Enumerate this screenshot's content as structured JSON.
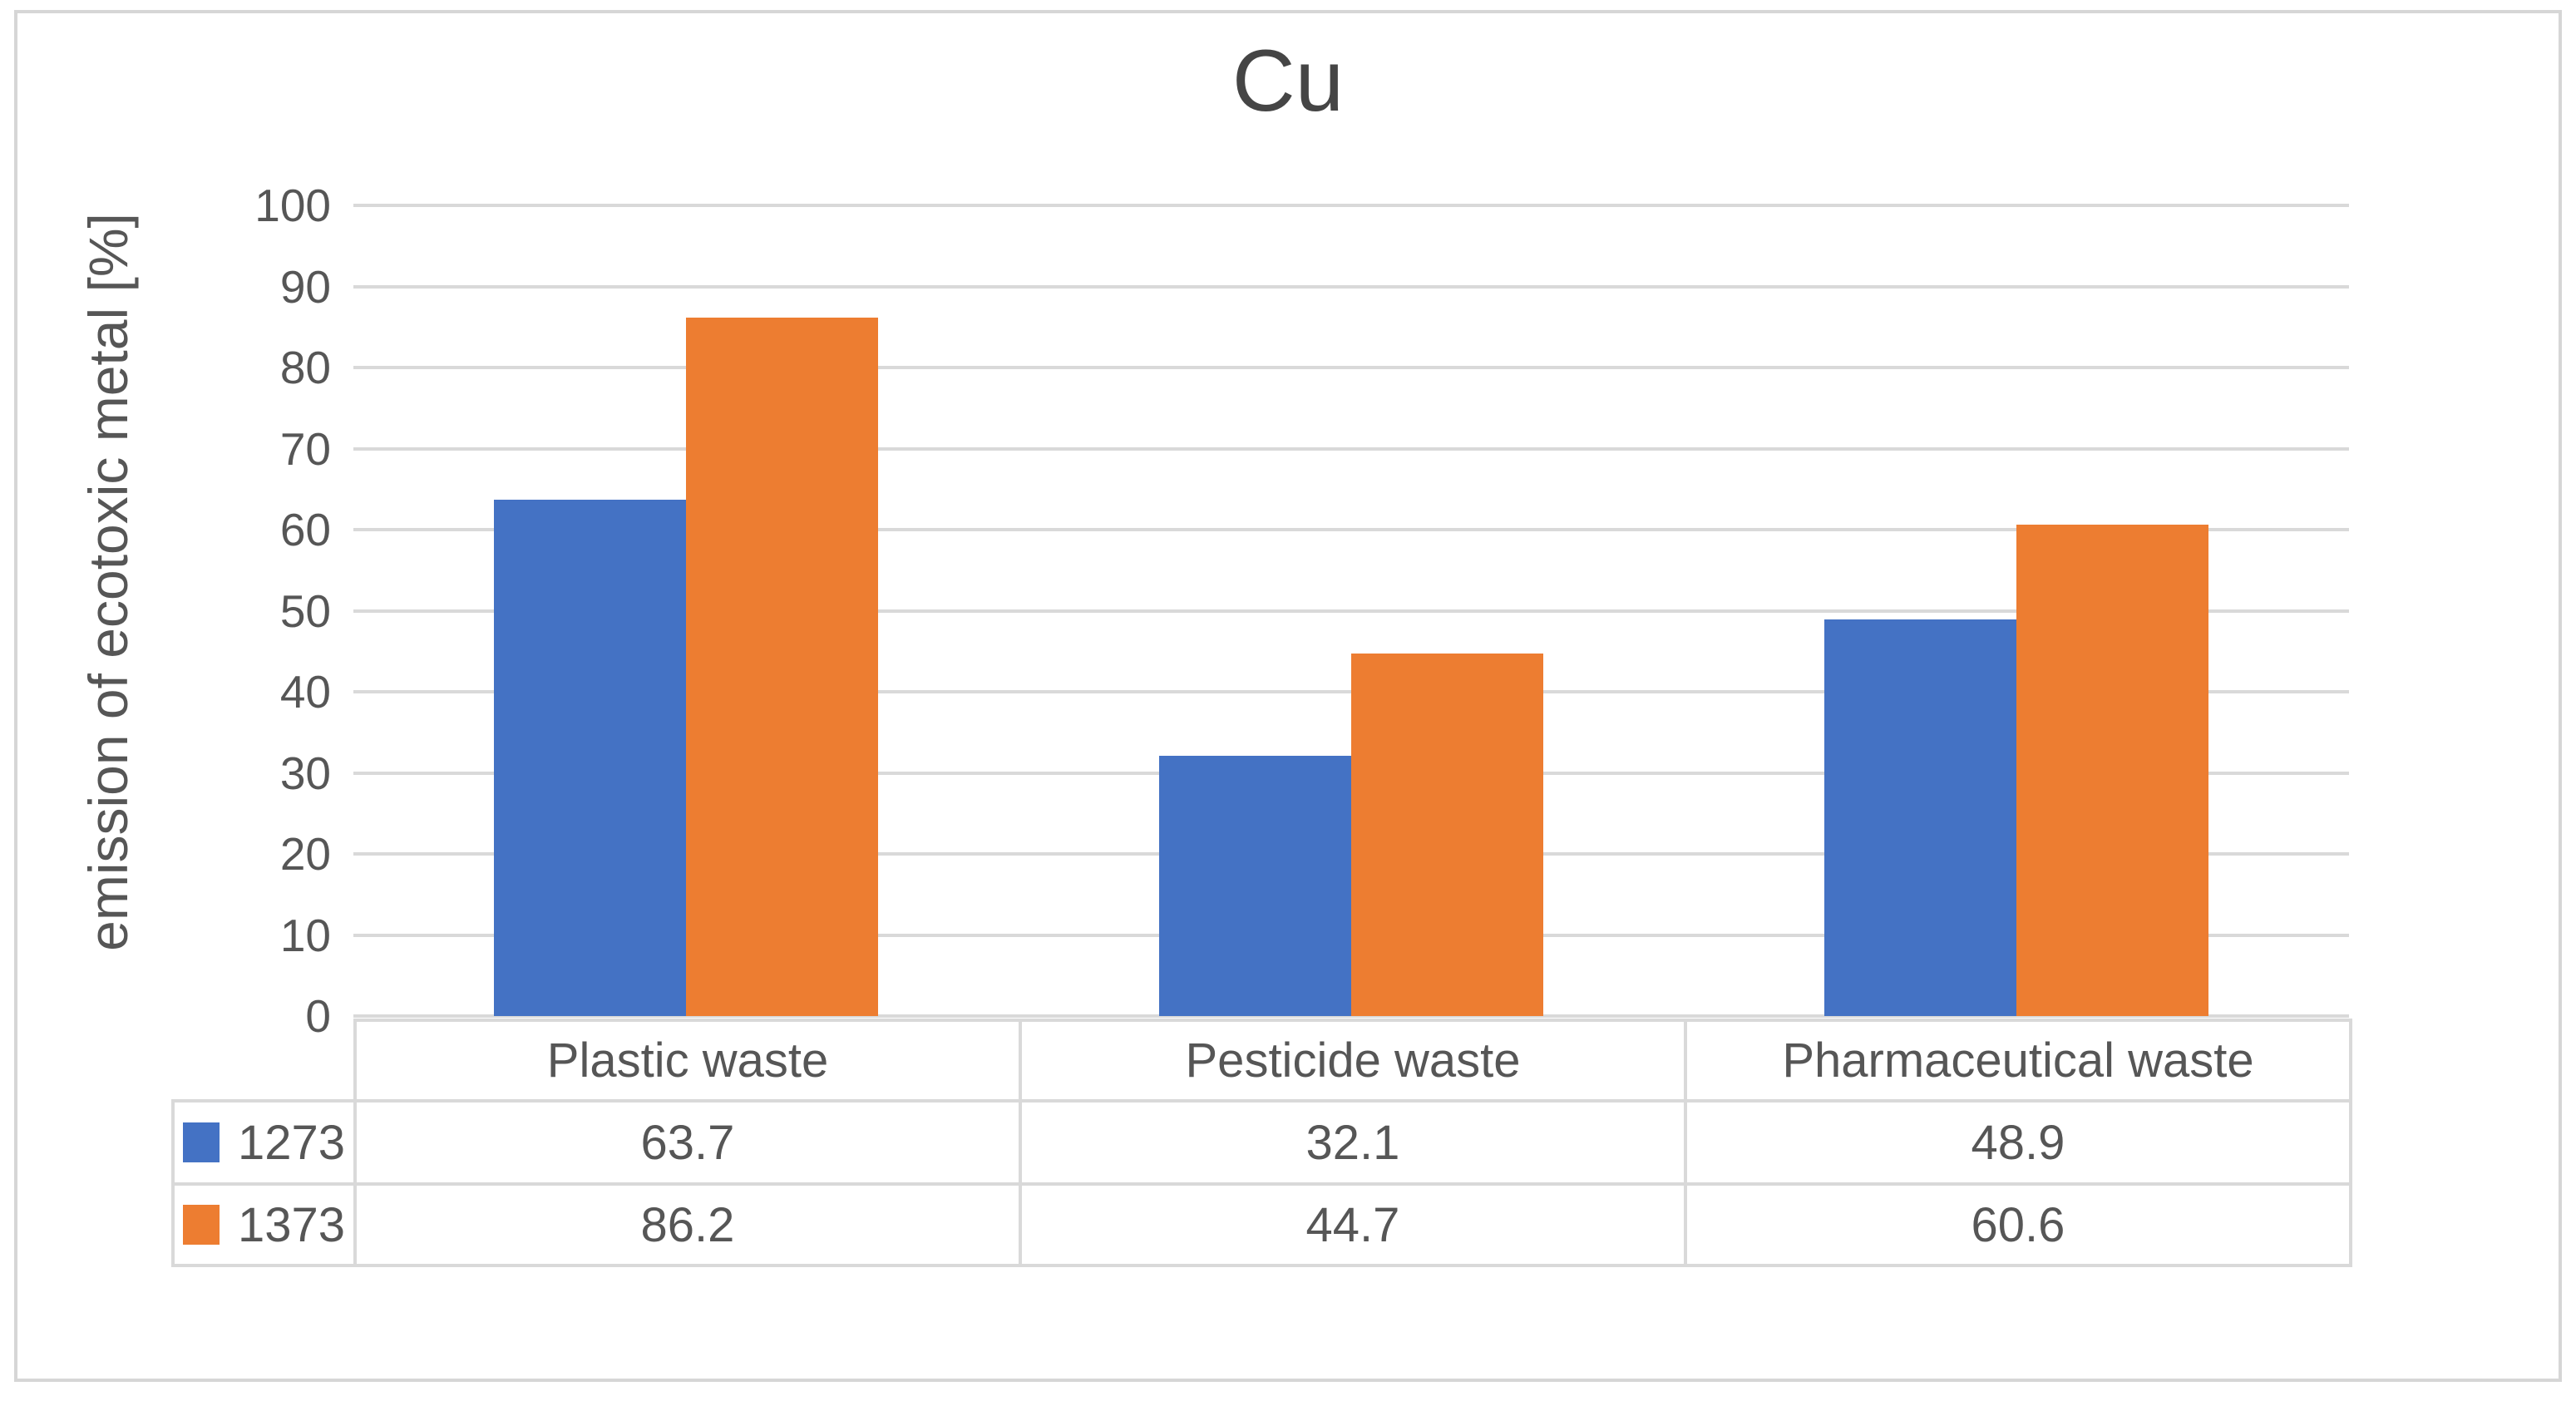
{
  "chart_data": {
    "type": "bar",
    "title": "Cu",
    "xlabel": "",
    "ylabel": "emission of ecotoxic metal [%]",
    "categories": [
      "Plastic waste",
      "Pesticide waste",
      "Pharmaceutical waste"
    ],
    "series": [
      {
        "name": "1273",
        "color": "#4472C4",
        "values": [
          63.7,
          32.1,
          48.9
        ]
      },
      {
        "name": "1373",
        "color": "#ED7D31",
        "values": [
          86.2,
          44.7,
          60.6
        ]
      }
    ],
    "ylim": [
      0,
      100
    ],
    "ytick_step": 10,
    "ytick_labels": [
      "0",
      "10",
      "20",
      "30",
      "40",
      "50",
      "60",
      "70",
      "80",
      "90",
      "100"
    ],
    "grid": true,
    "legend_position": "table-left",
    "value_display": {
      "1273": [
        "63.7",
        "32.1",
        "48.9"
      ],
      "1373": [
        "86.2",
        "44.7",
        "60.6"
      ]
    }
  },
  "styles": {
    "grid_color": "#d9d9d9",
    "table_border_color": "#d9d9d9",
    "outer_border_color": "#d6d6d6",
    "text_color": "#565656",
    "title_color": "#454545",
    "background": "#ffffff"
  }
}
